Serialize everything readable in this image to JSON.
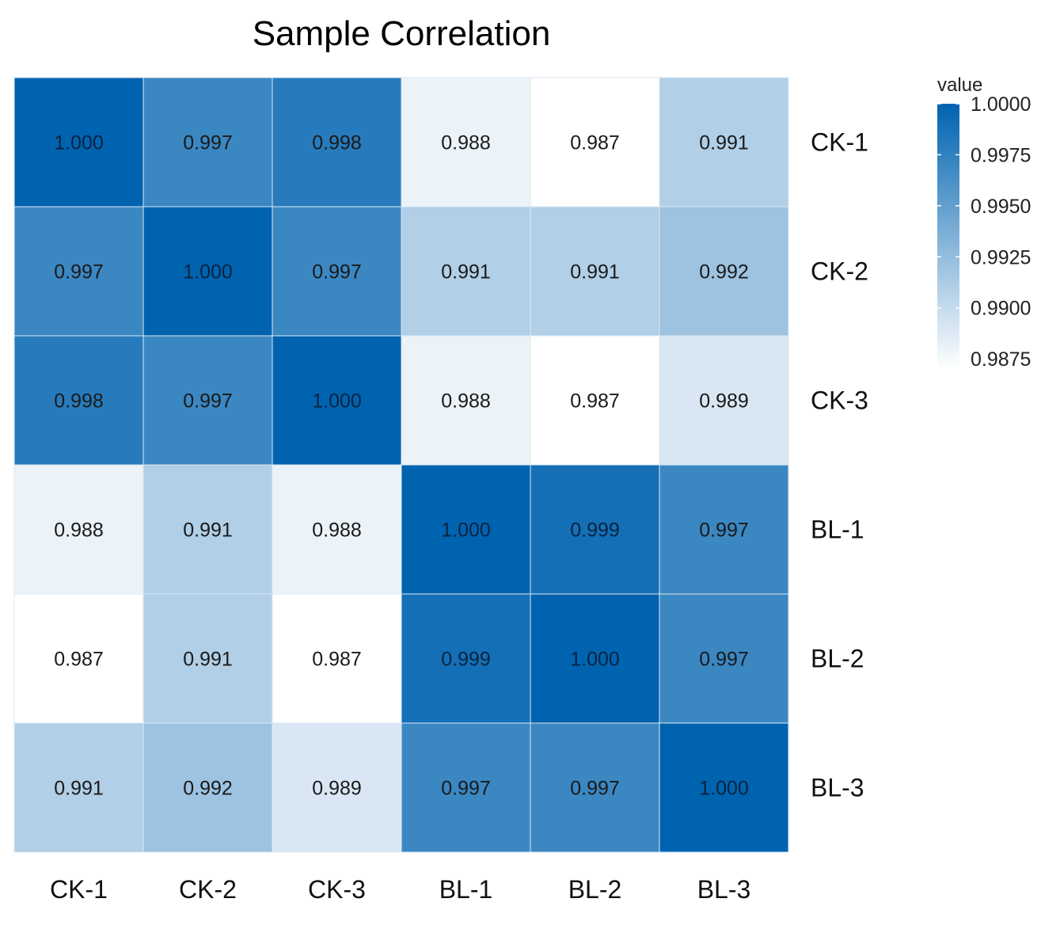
{
  "chart_data": {
    "type": "heatmap",
    "title": "Sample Correlation",
    "x_categories": [
      "CK-1",
      "CK-2",
      "CK-3",
      "BL-1",
      "BL-2",
      "BL-3"
    ],
    "y_categories": [
      "CK-1",
      "CK-2",
      "CK-3",
      "BL-1",
      "BL-2",
      "BL-3"
    ],
    "values": [
      [
        1.0,
        0.997,
        0.998,
        0.988,
        0.987,
        0.991
      ],
      [
        0.997,
        1.0,
        0.997,
        0.991,
        0.991,
        0.992
      ],
      [
        0.998,
        0.997,
        1.0,
        0.988,
        0.987,
        0.989
      ],
      [
        0.988,
        0.991,
        0.988,
        1.0,
        0.999,
        0.997
      ],
      [
        0.987,
        0.991,
        0.987,
        0.999,
        1.0,
        0.997
      ],
      [
        0.991,
        0.992,
        0.989,
        0.997,
        0.997,
        1.0
      ]
    ],
    "value_format_decimals": 3,
    "legend": {
      "title": "value",
      "position": "right",
      "range": [
        0.987,
        1.0
      ],
      "ticks": [
        1.0,
        0.9975,
        0.995,
        0.9925,
        0.99,
        0.9875
      ],
      "tick_labels": [
        "1.0000",
        "0.9975",
        "0.9950",
        "0.9925",
        "0.9900",
        "0.9875"
      ]
    },
    "color_low": "#ffffff",
    "color_high": "#0063b0",
    "cell_border_color": "#dce8f3",
    "y_axis_position": "right",
    "x_axis_position": "bottom"
  }
}
